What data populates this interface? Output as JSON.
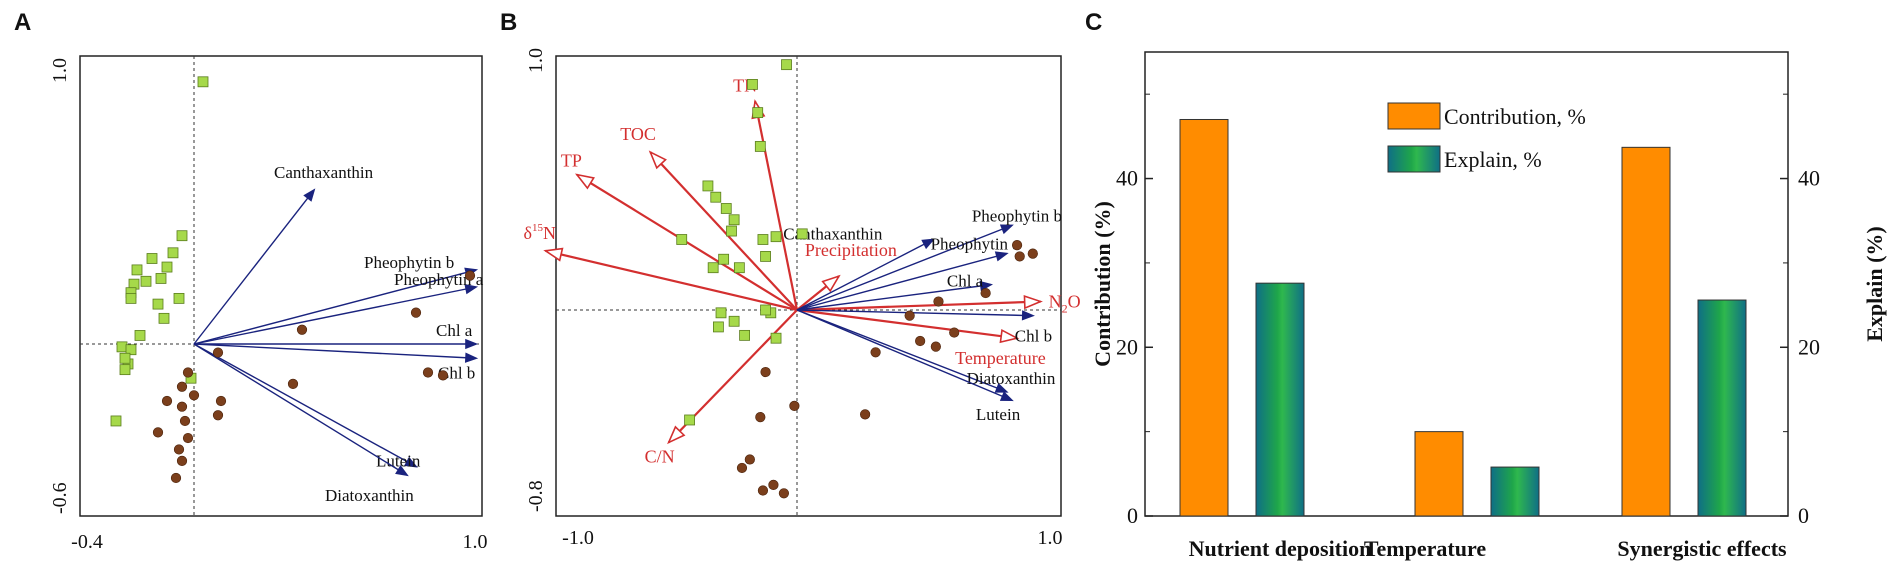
{
  "panel_labels": [
    "A",
    "B",
    "C"
  ],
  "chart_data": [
    {
      "id": "A",
      "type": "scatter",
      "title": "",
      "xlim": [
        -0.4,
        1.0
      ],
      "ylim": [
        -0.6,
        1.0
      ],
      "x_ticks": [
        "-0.4",
        "1.0"
      ],
      "y_ticks": [
        "1.0",
        "-0.6"
      ],
      "vectors": [
        {
          "label": "Canthaxanthin",
          "x": 0.4,
          "y": 0.54,
          "color": "#1a237e"
        },
        {
          "label": "Pheophytin b",
          "x": 0.94,
          "y": 0.26,
          "color": "#1a237e"
        },
        {
          "label": "Pheophytin a",
          "x": 0.94,
          "y": 0.2,
          "color": "#1a237e"
        },
        {
          "label": "Chl a",
          "x": 0.94,
          "y": 0.0,
          "color": "#1a237e"
        },
        {
          "label": "Chl b",
          "x": 0.94,
          "y": -0.05,
          "color": "#1a237e"
        },
        {
          "label": "Lutein",
          "x": 0.74,
          "y": -0.43,
          "color": "#1a237e"
        },
        {
          "label": "Diatoxanthin",
          "x": 0.71,
          "y": -0.46,
          "color": "#1a237e"
        }
      ],
      "squares": {
        "color": "#a6d94a",
        "x": [
          0.03,
          -0.04,
          -0.07,
          -0.14,
          -0.11,
          -0.19,
          -0.16,
          -0.2,
          -0.21,
          -0.21,
          -0.09,
          -0.12,
          -0.05,
          -0.1,
          -0.18,
          -0.24,
          -0.21,
          -0.22,
          -0.23,
          -0.01,
          -0.23,
          -0.26
        ],
        "y": [
          0.92,
          0.38,
          0.32,
          0.3,
          0.23,
          0.26,
          0.22,
          0.21,
          0.18,
          0.16,
          0.27,
          0.14,
          0.16,
          0.09,
          0.03,
          -0.01,
          -0.02,
          -0.07,
          -0.09,
          -0.12,
          -0.05,
          -0.27
        ]
      },
      "circles": {
        "color": "#7b3f1c",
        "x": [
          0.92,
          0.74,
          0.36,
          0.08,
          0.33,
          0.78,
          0.83,
          -0.02,
          -0.04,
          0.09,
          0.0,
          -0.04,
          -0.09,
          0.08,
          -0.03,
          -0.02,
          -0.04,
          -0.12,
          -0.05,
          -0.06
        ],
        "y": [
          0.24,
          0.11,
          0.05,
          -0.03,
          -0.14,
          -0.1,
          -0.11,
          -0.1,
          -0.15,
          -0.2,
          -0.18,
          -0.22,
          -0.2,
          -0.25,
          -0.27,
          -0.33,
          -0.41,
          -0.31,
          -0.37,
          -0.47
        ]
      }
    },
    {
      "id": "B",
      "type": "scatter",
      "title": "",
      "xlim": [
        -1.0,
        1.0
      ],
      "ylim": [
        -0.8,
        1.0
      ],
      "x_ticks": [
        "-1.0",
        "1.0"
      ],
      "y_ticks": [
        "1.0",
        "-0.8"
      ],
      "vectors": [
        {
          "label": "TN",
          "x": -0.16,
          "y": 0.74,
          "color": "#d32f2f"
        },
        {
          "label": "TOC",
          "x": -0.56,
          "y": 0.56,
          "color": "#d32f2f"
        },
        {
          "label": "TP",
          "x": -0.84,
          "y": 0.48,
          "color": "#d32f2f"
        },
        {
          "label": "δ15N",
          "x": -0.96,
          "y": 0.21,
          "color": "#d32f2f"
        },
        {
          "label": "Precipitation",
          "x": 0.16,
          "y": 0.12,
          "color": "#d32f2f"
        },
        {
          "label": "N2O",
          "x": 0.93,
          "y": 0.03,
          "color": "#d32f2f"
        },
        {
          "label": "Temperature",
          "x": 0.84,
          "y": -0.1,
          "color": "#d32f2f"
        },
        {
          "label": "C/N",
          "x": -0.49,
          "y": -0.47,
          "color": "#d32f2f"
        },
        {
          "label": "Pheophytin b",
          "x": 0.82,
          "y": 0.3,
          "color": "#1a237e"
        },
        {
          "label": "Canthaxanthin",
          "x": 0.52,
          "y": 0.25,
          "color": "#1a237e"
        },
        {
          "label": "Pheophytin a",
          "x": 0.8,
          "y": 0.2,
          "color": "#1a237e"
        },
        {
          "label": "Chl a",
          "x": 0.74,
          "y": 0.09,
          "color": "#1a237e"
        },
        {
          "label": "Chl b",
          "x": 0.9,
          "y": -0.02,
          "color": "#1a237e"
        },
        {
          "label": "Diatoxanthin",
          "x": 0.8,
          "y": -0.29,
          "color": "#1a237e"
        },
        {
          "label": "Lutein",
          "x": 0.82,
          "y": -0.32,
          "color": "#1a237e"
        }
      ],
      "squares": {
        "color": "#a6d94a",
        "x": [
          -0.04,
          -0.17,
          -0.15,
          -0.14,
          -0.34,
          -0.31,
          -0.27,
          -0.24,
          -0.44,
          -0.25,
          -0.13,
          -0.08,
          -0.28,
          -0.32,
          -0.12,
          -0.22,
          0.02,
          -0.29,
          -0.3,
          -0.2,
          -0.24,
          -0.08,
          -0.1,
          -0.12,
          -0.41
        ],
        "y": [
          0.87,
          0.8,
          0.7,
          0.58,
          0.44,
          0.4,
          0.36,
          0.32,
          0.25,
          0.28,
          0.25,
          0.26,
          0.18,
          0.15,
          0.19,
          0.15,
          0.27,
          -0.01,
          -0.06,
          -0.09,
          -0.04,
          -0.1,
          -0.01,
          0.0,
          -0.39
        ]
      },
      "circles": {
        "color": "#7b3f1c",
        "x": [
          0.9,
          0.84,
          0.85,
          0.72,
          0.54,
          0.6,
          0.53,
          0.3,
          0.43,
          0.47,
          -0.12,
          -0.01,
          -0.14,
          0.26,
          -0.18,
          -0.21,
          -0.13,
          -0.09,
          -0.05
        ],
        "y": [
          0.2,
          0.23,
          0.19,
          0.06,
          0.03,
          -0.08,
          -0.13,
          -0.15,
          -0.02,
          -0.11,
          -0.22,
          -0.34,
          -0.38,
          -0.37,
          -0.53,
          -0.56,
          -0.64,
          -0.62,
          -0.65
        ]
      }
    },
    {
      "id": "C",
      "type": "bar",
      "title": "",
      "categories": [
        "Nutrient deposition",
        "Temperature",
        "Synergistic effects"
      ],
      "series": [
        {
          "name": "Contribution, %",
          "values": [
            47,
            10,
            43.7
          ],
          "color": "#ff8c00"
        },
        {
          "name": "Explain, %",
          "values": [
            27.6,
            5.8,
            25.6
          ],
          "color": "#1a8a4a"
        }
      ],
      "ylabel": "Contribution (%)",
      "y2label": "Explain (%)",
      "ylim": [
        0,
        55
      ],
      "y_ticks": [
        0,
        20,
        40
      ],
      "legend": "top-center"
    }
  ]
}
